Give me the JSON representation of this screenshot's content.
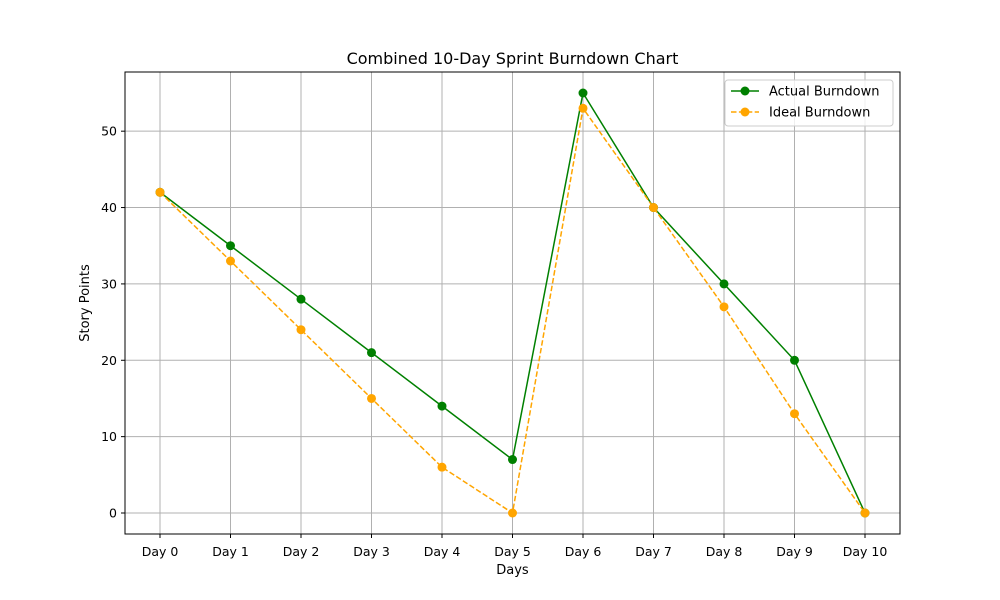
{
  "chart_data": {
    "type": "line",
    "title": "Combined 10-Day Sprint Burndown Chart",
    "xlabel": "Days",
    "ylabel": "Story Points",
    "categories": [
      "Day 0",
      "Day 1",
      "Day 2",
      "Day 3",
      "Day 4",
      "Day 5",
      "Day 6",
      "Day 7",
      "Day 8",
      "Day 9",
      "Day 10"
    ],
    "ylim": [
      -2.75,
      57.75
    ],
    "yticks": [
      0,
      10,
      20,
      30,
      40,
      50
    ],
    "grid": true,
    "legend_position": "top-right",
    "series": [
      {
        "name": "Actual Burndown",
        "values": [
          42,
          35,
          28,
          21,
          14,
          7,
          55,
          40,
          30,
          20,
          0
        ],
        "color": "#008000",
        "line_style": "solid",
        "marker": "circle"
      },
      {
        "name": "Ideal Burndown",
        "values": [
          42,
          33,
          24,
          15,
          6,
          0,
          53,
          40,
          27,
          13,
          0
        ],
        "color": "#ffa500",
        "line_style": "dashed",
        "marker": "circle"
      }
    ]
  }
}
